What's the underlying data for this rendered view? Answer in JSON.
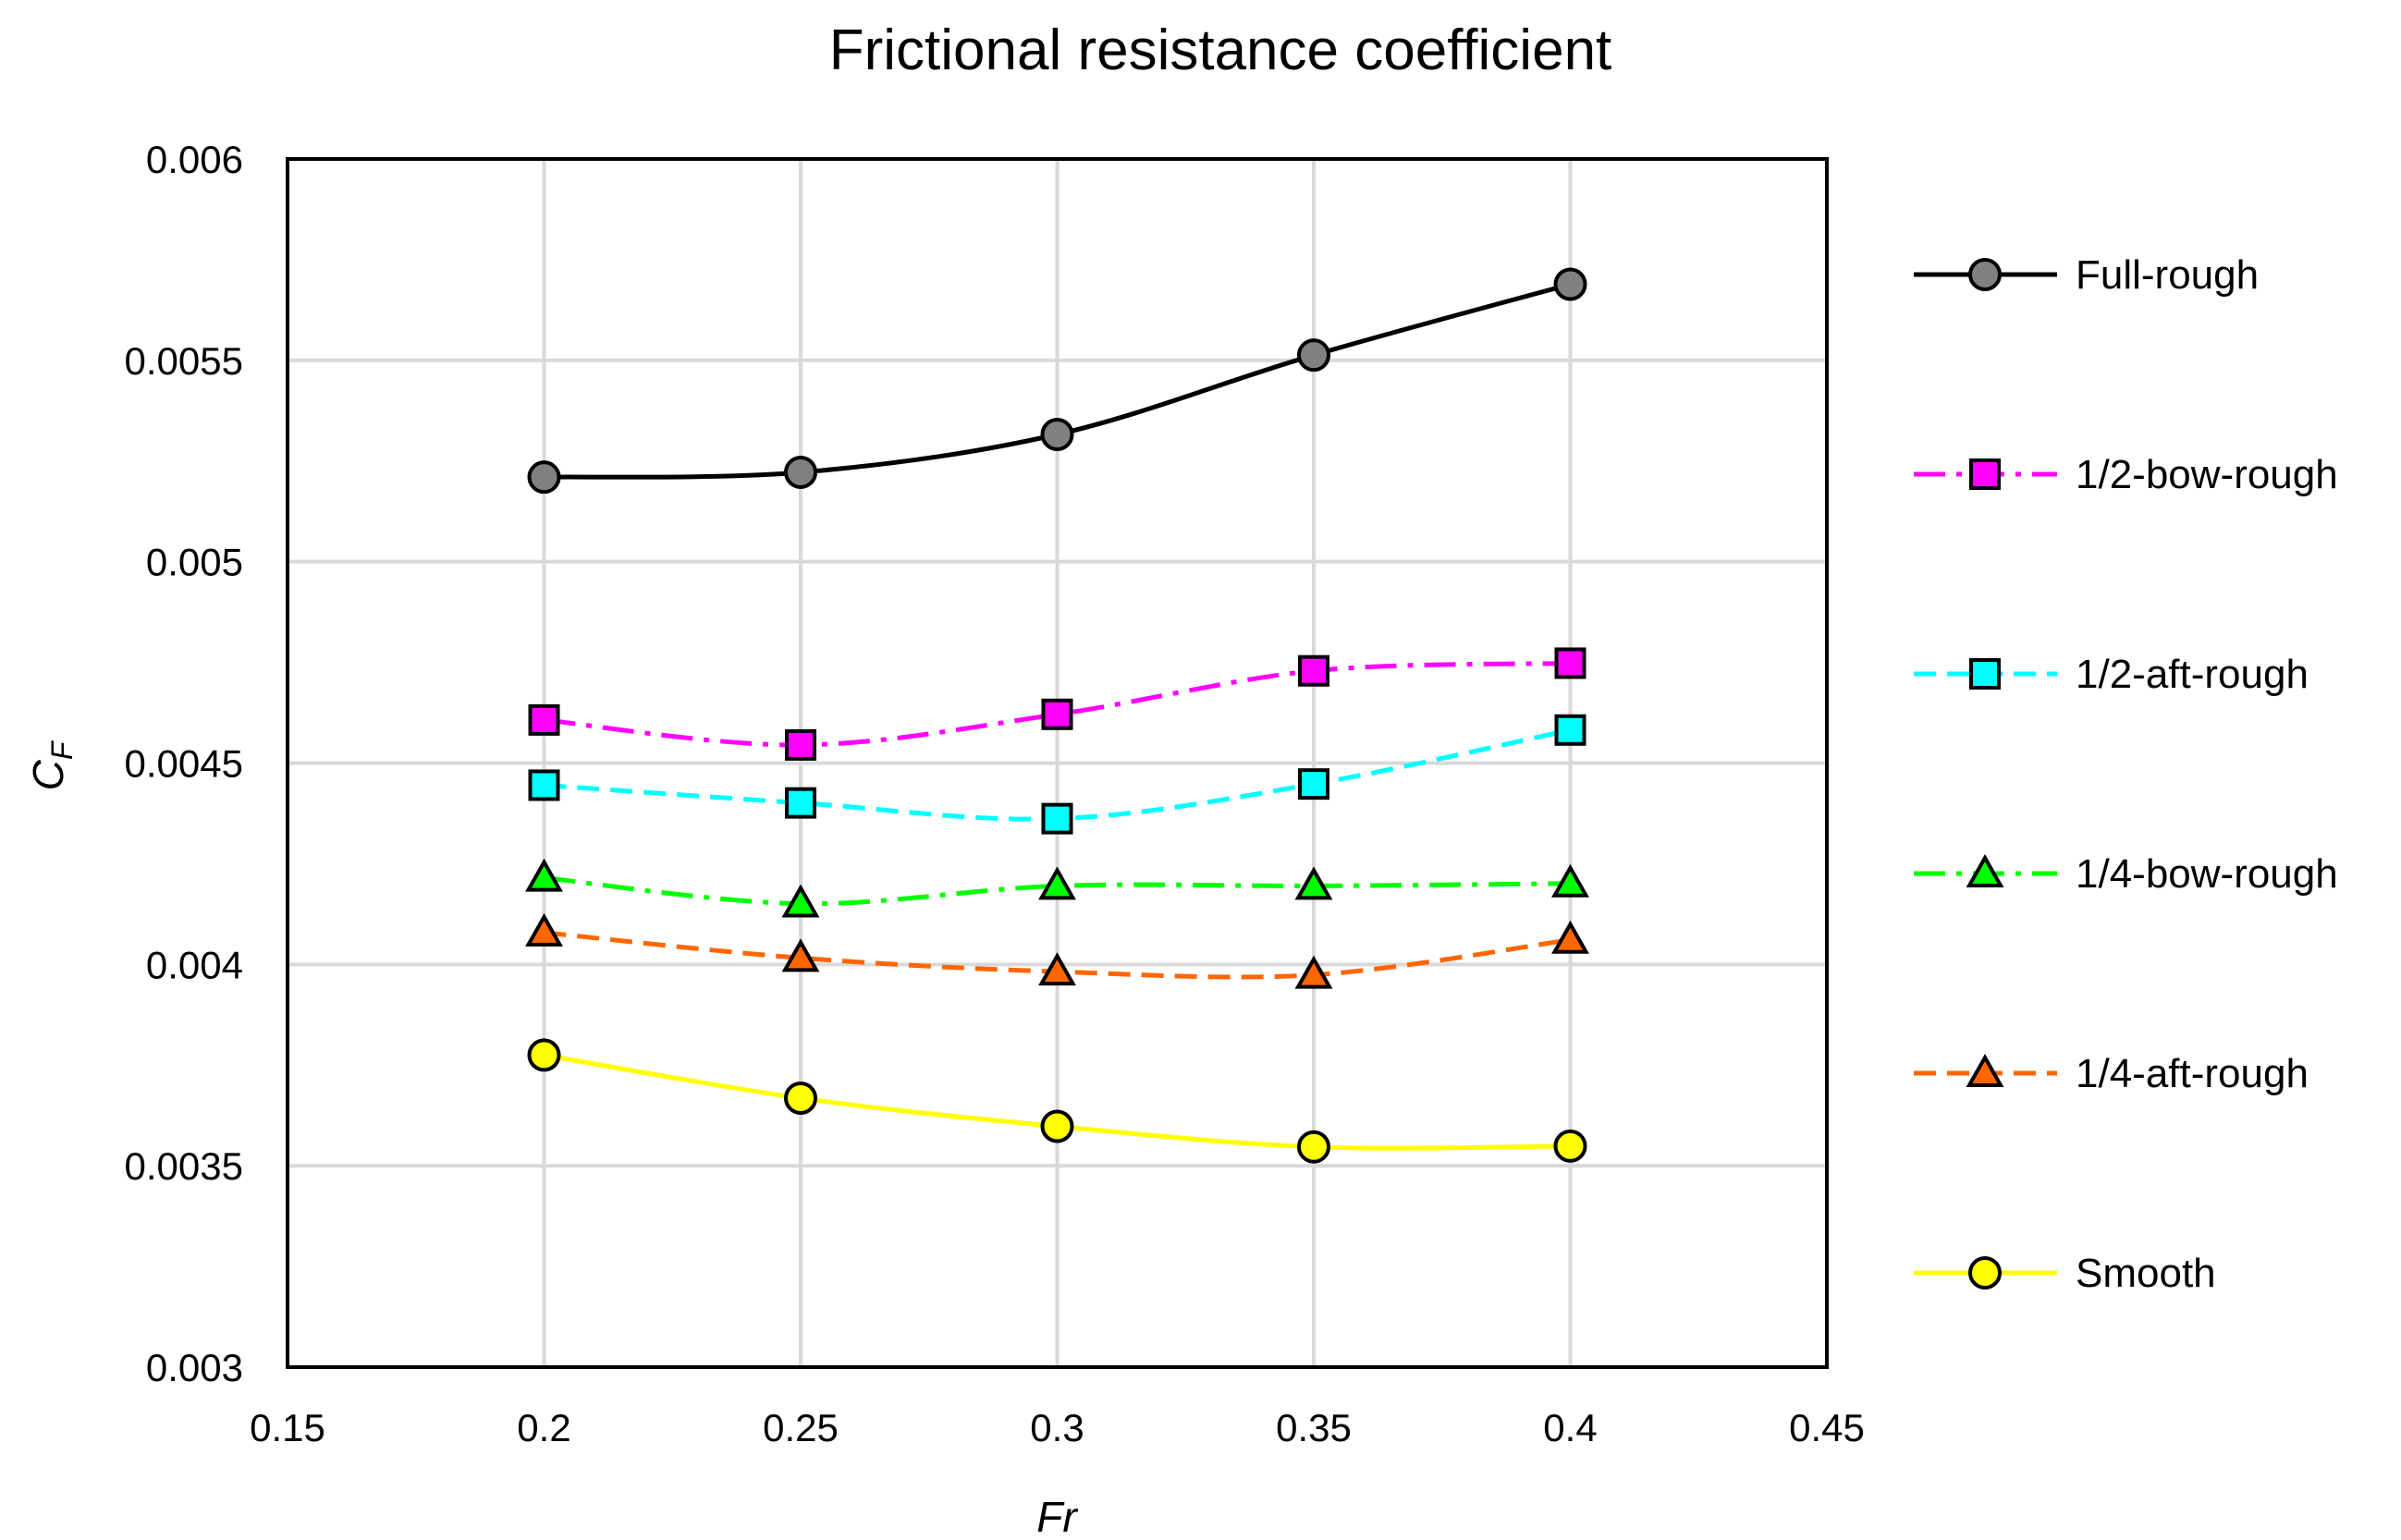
{
  "chart_data": {
    "type": "line",
    "title": "Frictional resistance coefficient",
    "xlabel": "Fr",
    "ylabel_main": "C",
    "ylabel_sub": "F",
    "xlim": [
      0.15,
      0.45
    ],
    "ylim": [
      0.003,
      0.006
    ],
    "x_ticks": [
      0.15,
      0.2,
      0.25,
      0.3,
      0.35,
      0.4,
      0.45
    ],
    "x_tick_labels": [
      "0.15",
      "0.2",
      "0.25",
      "0.3",
      "0.35",
      "0.4",
      "0.45"
    ],
    "y_ticks": [
      0.003,
      0.0035,
      0.004,
      0.0045,
      0.005,
      0.0055,
      0.006
    ],
    "y_tick_labels": [
      "0.003",
      "0.0035",
      "0.004",
      "0.0045",
      "0.005",
      "0.0055",
      "0.006"
    ],
    "grid": true,
    "legend_position": "right",
    "x": [
      0.2,
      0.25,
      0.3,
      0.35,
      0.4
    ],
    "series": [
      {
        "name": "Full-rough",
        "values": [
          0.00521,
          0.005222,
          0.005316,
          0.005513,
          0.005689
        ],
        "color": "#000000",
        "marker": "circle",
        "marker_fill": "#808080",
        "dash": "solid"
      },
      {
        "name": "1/2-bow-rough",
        "values": [
          0.004607,
          0.004545,
          0.004621,
          0.004729,
          0.004748
        ],
        "color": "#ff00ff",
        "marker": "square",
        "marker_fill": "#ff00ff",
        "dash": "dashdot"
      },
      {
        "name": "1/2-aft-rough",
        "values": [
          0.004445,
          0.004401,
          0.004362,
          0.004448,
          0.004582
        ],
        "color": "#00ffff",
        "marker": "square",
        "marker_fill": "#00ffff",
        "dash": "dash"
      },
      {
        "name": "1/4-bow-rough",
        "values": [
          0.004215,
          0.004151,
          0.004195,
          0.004195,
          0.004201
        ],
        "color": "#00ff00",
        "marker": "triangle",
        "marker_fill": "#00ff00",
        "dash": "dashdot"
      },
      {
        "name": "1/4-aft-rough",
        "values": [
          0.004079,
          0.004016,
          0.003982,
          0.003974,
          0.004061
        ],
        "color": "#ff6600",
        "marker": "triangle",
        "marker_fill": "#ff6600",
        "dash": "dash"
      },
      {
        "name": "Smooth",
        "values": [
          0.003775,
          0.003668,
          0.003598,
          0.003547,
          0.003549
        ],
        "color": "#ffff00",
        "marker": "circle",
        "marker_fill": "#ffff00",
        "dash": "solid"
      }
    ]
  }
}
